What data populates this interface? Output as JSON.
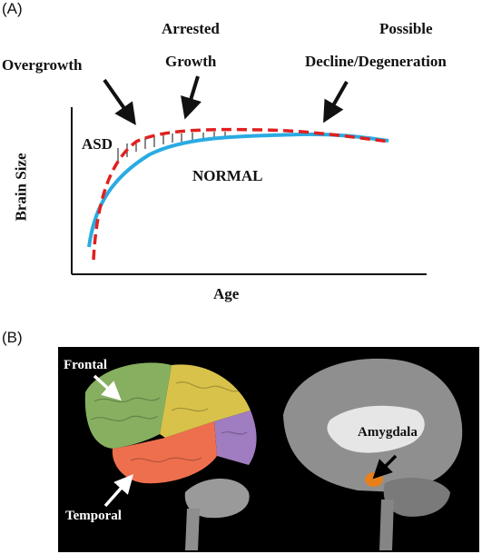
{
  "panel_a": {
    "label": "(A)",
    "annotations": {
      "overgrowth": "Overgrowth",
      "arrested_line1": "Arrested",
      "arrested_line2": "Growth",
      "possible_line1": "Possible",
      "possible_line2": "Decline/Degeneration"
    },
    "curve_labels": {
      "asd": "ASD",
      "normal": "NORMAL"
    },
    "ylabel": "Brain Size",
    "xlabel": "Age",
    "colors": {
      "asd_curve": "#e02020",
      "normal_curve": "#29abe2",
      "axes": "#111111"
    }
  },
  "panel_b": {
    "label": "(B)",
    "labels": {
      "frontal": "Frontal",
      "temporal": "Temporal",
      "amygdala": "Amygdala"
    },
    "colors": {
      "frontal": "#86b060",
      "parietal": "#d8c24a",
      "occipital": "#a07cc0",
      "temporal": "#ee6f4e",
      "cerebellum": "#9a9a9a",
      "amygdala": "#e8801a"
    }
  }
}
